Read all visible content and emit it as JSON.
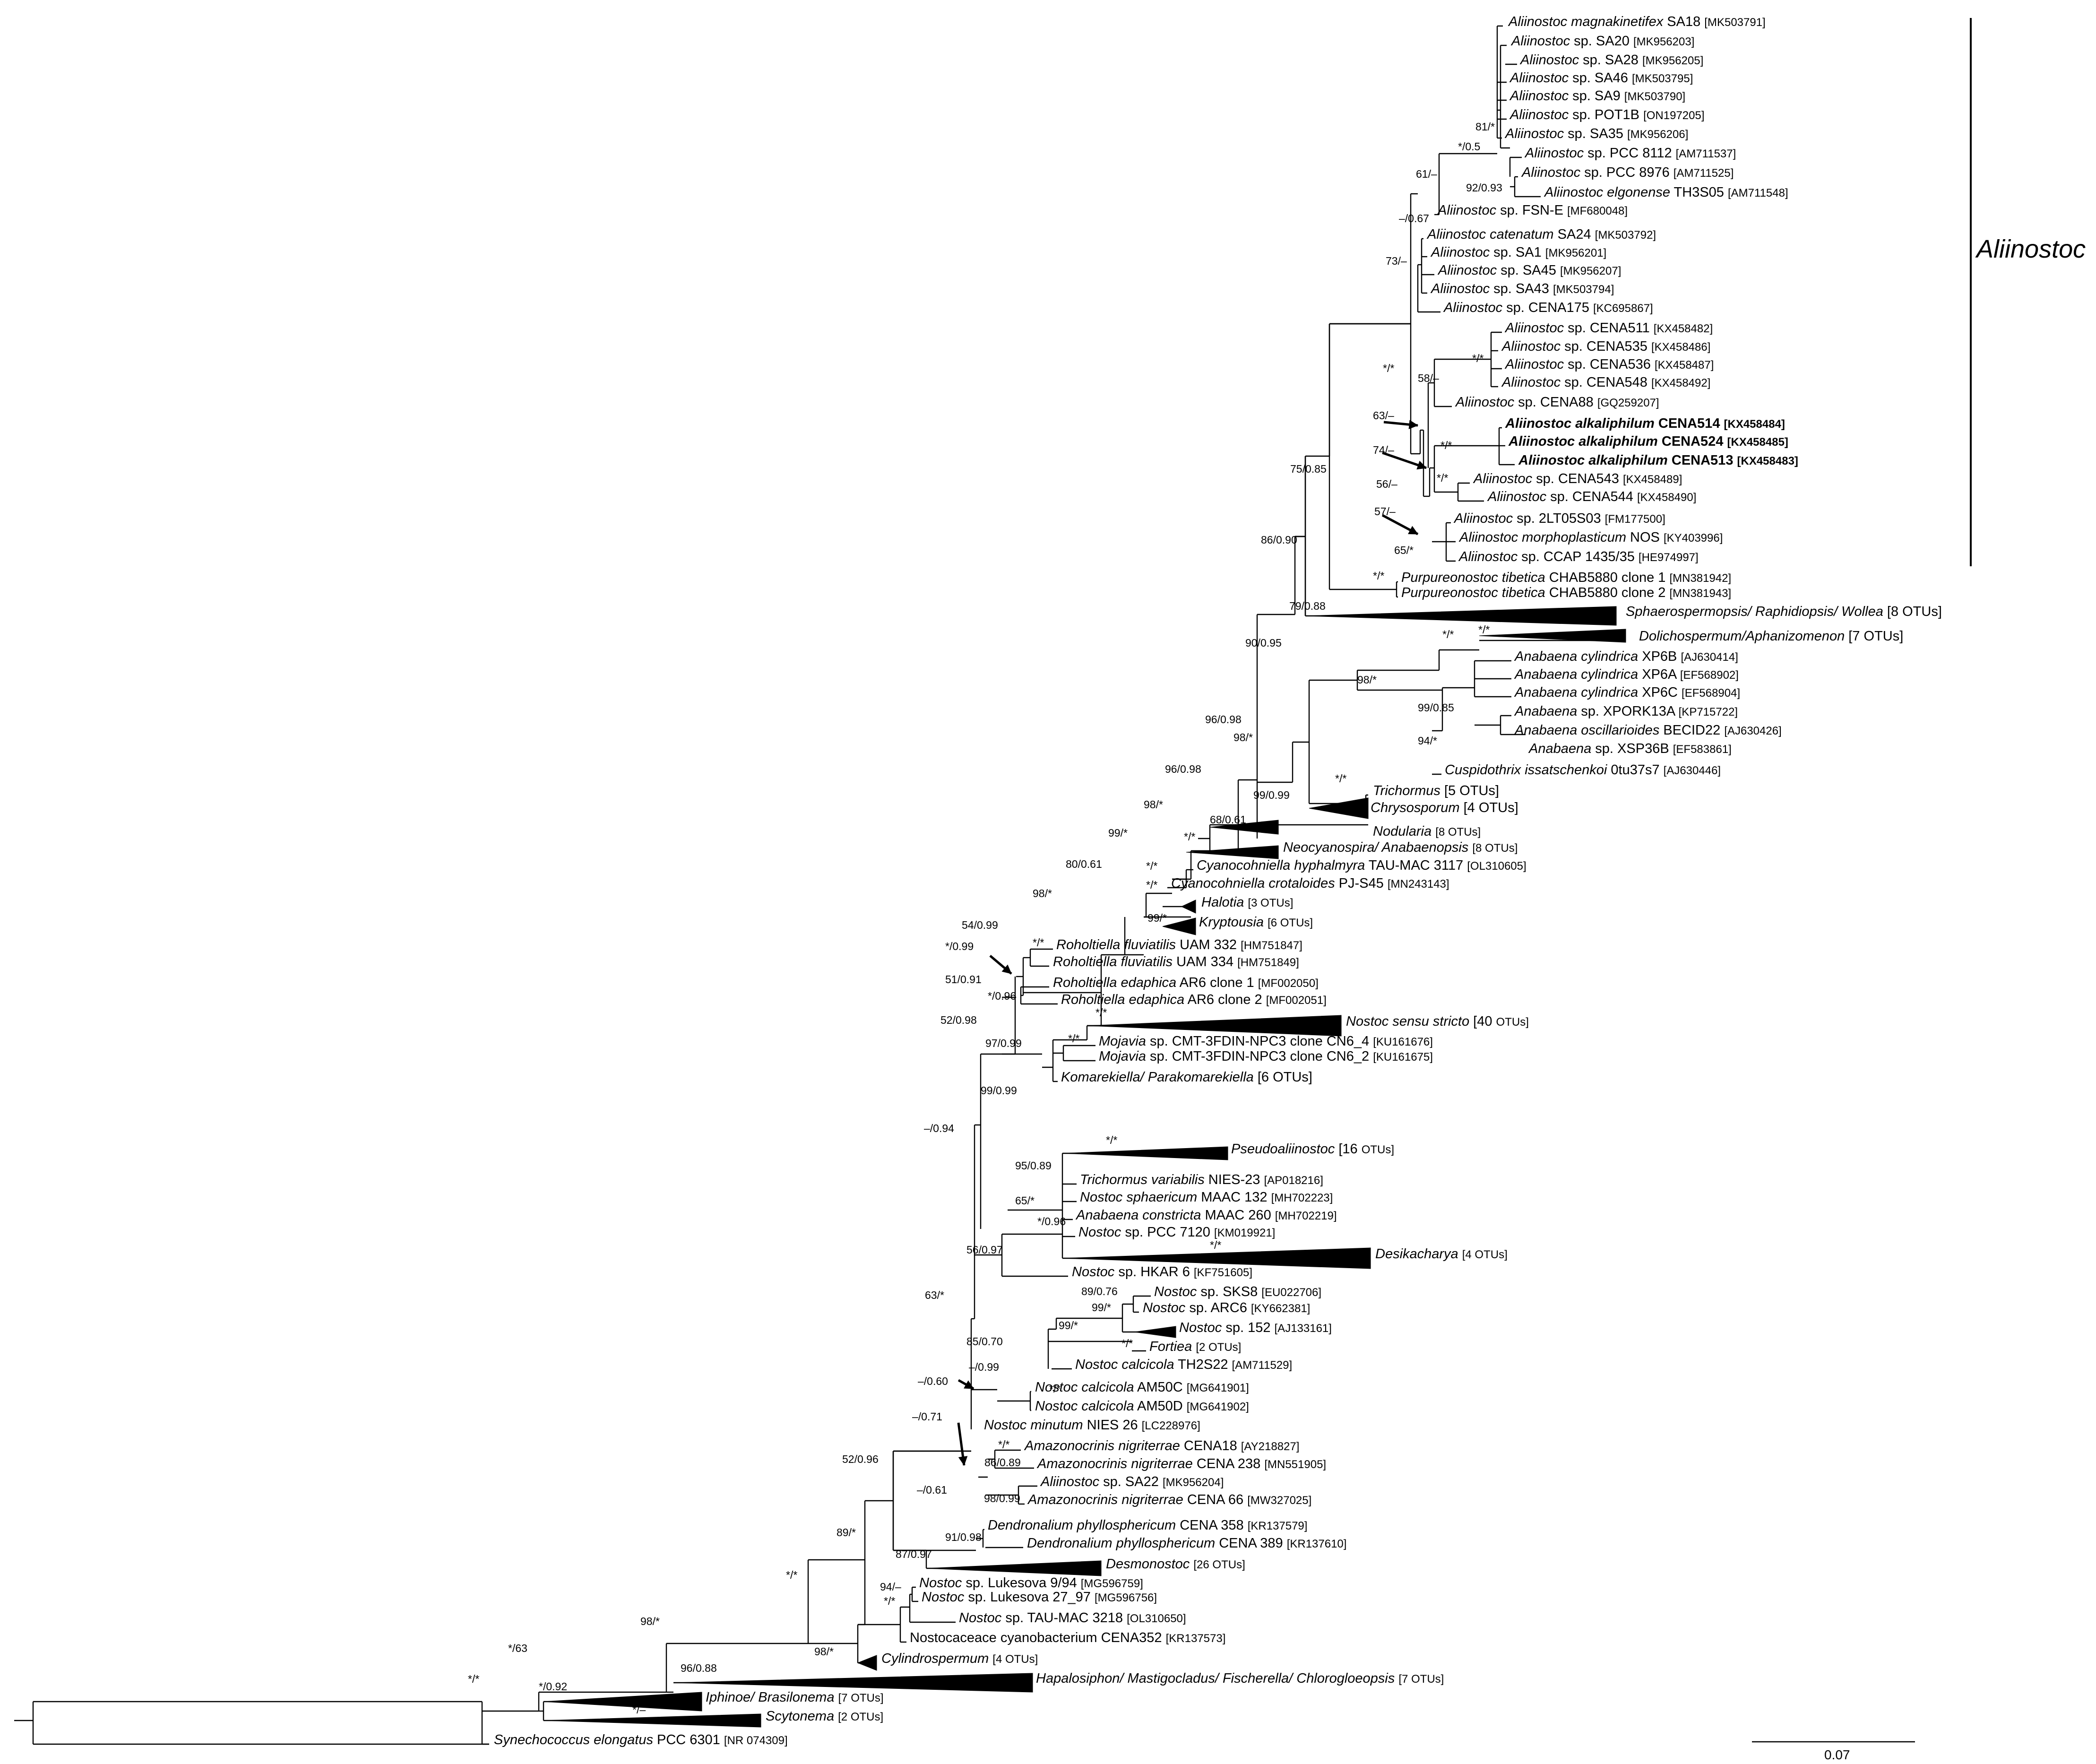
{
  "taxa": [
    {
      "pre": "",
      "italic": "Aliinostoc magnakinetifex",
      "plain": " SA18 ",
      "acc": "[MK503791]",
      "bold": false
    },
    {
      "pre": "",
      "italic": "Aliinostoc",
      "plain": " sp. SA20 ",
      "acc": "[MK956203]",
      "bold": false
    },
    {
      "pre": "",
      "italic": "Aliinostoc",
      "plain": " sp. SA28 ",
      "acc": "[MK956205]",
      "bold": false
    },
    {
      "pre": "",
      "italic": "Aliinostoc",
      "plain": " sp. SA46 ",
      "acc": "[MK503795]",
      "bold": false
    },
    {
      "pre": "",
      "italic": "Aliinostoc",
      "plain": " sp. SA9 ",
      "acc": "[MK503790]",
      "bold": false
    },
    {
      "pre": "",
      "italic": "Aliinostoc",
      "plain": " sp. POT1B ",
      "acc": "[ON197205]",
      "bold": false
    },
    {
      "pre": "",
      "italic": "Aliinostoc",
      "plain": " sp. SA35 ",
      "acc": "[MK956206]",
      "bold": false
    },
    {
      "pre": "",
      "italic": "Aliinostoc",
      "plain": " sp. PCC 8112 ",
      "acc": "[AM711537]",
      "bold": false
    },
    {
      "pre": "",
      "italic": "Aliinostoc",
      "plain": " sp. PCC 8976 ",
      "acc": "[AM711525]",
      "bold": false
    },
    {
      "pre": "",
      "italic": "Aliinostoc elgonense",
      "plain": " TH3S05 ",
      "acc": "[AM711548]",
      "bold": false
    },
    {
      "pre": "",
      "italic": "Aliinostoc",
      "plain": " sp. FSN-E ",
      "acc": "[MF680048]",
      "bold": false
    },
    {
      "pre": "",
      "italic": "Aliinostoc catenatum",
      "plain": " SA24 ",
      "acc": "[MK503792]",
      "bold": false
    },
    {
      "pre": "",
      "italic": "Aliinostoc",
      "plain": " sp. SA1 ",
      "acc": "[MK956201]",
      "bold": false
    },
    {
      "pre": "",
      "italic": "Aliinostoc",
      "plain": " sp. SA45 ",
      "acc": "[MK956207]",
      "bold": false
    },
    {
      "pre": "",
      "italic": "Aliinostoc",
      "plain": " sp. SA43 ",
      "acc": "[MK503794]",
      "bold": false
    },
    {
      "pre": "",
      "italic": "Aliinostoc",
      "plain": " sp. CENA175 ",
      "acc": "[KC695867]",
      "bold": false
    },
    {
      "pre": "",
      "italic": "Aliinostoc",
      "plain": " sp. CENA511 ",
      "acc": "[KX458482]",
      "bold": false
    },
    {
      "pre": "",
      "italic": "Aliinostoc",
      "plain": " sp. CENA535 ",
      "acc": "[KX458486]",
      "bold": false
    },
    {
      "pre": "",
      "italic": "Aliinostoc",
      "plain": " sp. CENA536 ",
      "acc": "[KX458487]",
      "bold": false
    },
    {
      "pre": "",
      "italic": "Aliinostoc",
      "plain": " sp. CENA548 ",
      "acc": "[KX458492]",
      "bold": false
    },
    {
      "pre": "",
      "italic": "Aliinostoc",
      "plain": " sp. CENA88 ",
      "acc": "[GQ259207]",
      "bold": false
    },
    {
      "pre": "",
      "italic": "Aliinostoc alkaliphilum",
      "plain": " CENA514 ",
      "acc": "[KX458484]",
      "bold": true
    },
    {
      "pre": "",
      "italic": "Aliinostoc alkaliphilum",
      "plain": " CENA524 ",
      "acc": "[KX458485]",
      "bold": true
    },
    {
      "pre": "",
      "italic": "Aliinostoc alkaliphilum",
      "plain": " CENA513 ",
      "acc": "[KX458483]",
      "bold": true
    },
    {
      "pre": "",
      "italic": "Aliinostoc",
      "plain": " sp. CENA543 ",
      "acc": "[KX458489]",
      "bold": false
    },
    {
      "pre": "",
      "italic": "Aliinostoc",
      "plain": " sp. CENA544 ",
      "acc": "[KX458490]",
      "bold": false
    },
    {
      "pre": "",
      "italic": "Aliinostoc",
      "plain": " sp. 2LT05S03 ",
      "acc": "[FM177500]",
      "bold": false
    },
    {
      "pre": "",
      "italic": "Aliinostoc morphoplasticum",
      "plain": " NOS ",
      "acc": "[KY403996]",
      "bold": false
    },
    {
      "pre": "",
      "italic": "Aliinostoc",
      "plain": " sp. CCAP 1435/35 ",
      "acc": "[HE974997]",
      "bold": false
    },
    {
      "pre": "",
      "italic": "Purpureonostoc tibetica",
      "plain": " CHAB5880 clone 1 ",
      "acc": "[MN381942]",
      "bold": false
    },
    {
      "pre": "",
      "italic": "Purpureonostoc tibetica",
      "plain": " CHAB5880 clone 2 ",
      "acc": "[MN381943]",
      "bold": false
    },
    {
      "pre": "",
      "italic": "Sphaerospermopsis/ Raphidiopsis/ Wollea",
      "plain": " [8 OTUs]",
      "acc": "",
      "bold": false
    },
    {
      "pre": "",
      "italic": "Dolichospermum/Aphanizomenon",
      "plain": " [7 OTUs]",
      "acc": "",
      "bold": false
    },
    {
      "pre": "",
      "italic": "Anabaena cylindrica",
      "plain": "  XP6B ",
      "acc": "[AJ630414]",
      "bold": false
    },
    {
      "pre": "",
      "italic": "Anabaena cylindrica",
      "plain": "  XP6A ",
      "acc": "[EF568902]",
      "bold": false
    },
    {
      "pre": "",
      "italic": "Anabaena cylindrica",
      "plain": "  XP6C ",
      "acc": "[EF568904]",
      "bold": false
    },
    {
      "pre": "",
      "italic": "Anabaena",
      "plain": " sp.  XPORK13A ",
      "acc": "[KP715722]",
      "bold": false
    },
    {
      "pre": "",
      "italic": "Anabaena oscillarioides",
      "plain": "  BECID22 ",
      "acc": "[AJ630426]",
      "bold": false
    },
    {
      "pre": "",
      "italic": "Anabaena",
      "plain": " sp. XSP36B ",
      "acc": "[EF583861]",
      "bold": false
    },
    {
      "pre": "",
      "italic": "Cuspidothrix issatschenkoi",
      "plain": " 0tu37s7 ",
      "acc": "[AJ630446]",
      "bold": false
    },
    {
      "pre": "",
      "italic": "Trichormus",
      "plain": " [5 OTUs]",
      "acc": "",
      "bold": false
    },
    {
      "pre": "",
      "italic": "Chrysosporum",
      "plain": " [4 OTUs]",
      "acc": "",
      "bold": false
    },
    {
      "pre": "",
      "italic": "Nodularia",
      "plain": " ",
      "acc": "[8 OTUs]",
      "bold": false
    },
    {
      "pre": "",
      "italic": "Neocyanospira/ Anabaenopsis",
      "plain": " ",
      "acc": "[8 OTUs]",
      "bold": false
    },
    {
      "pre": "",
      "italic": "Cyanocohniella hyphalmyra",
      "plain": " TAU-MAC 3117 ",
      "acc": "[OL310605]",
      "bold": false
    },
    {
      "pre": "",
      "italic": "Cyanocohniella crotaloides",
      "plain": " PJ-S45 ",
      "acc": "[MN243143]",
      "bold": false
    },
    {
      "pre": "",
      "italic": "Halotia",
      "plain": " ",
      "acc": "[3 OTUs]",
      "bold": false
    },
    {
      "pre": "",
      "italic": "Kryptousia",
      "plain": " ",
      "acc": "[6 OTUs]",
      "bold": false
    },
    {
      "pre": "",
      "italic": "Roholtiella fluviatilis",
      "plain": "  UAM 332 ",
      "acc": "[HM751847]",
      "bold": false
    },
    {
      "pre": "",
      "italic": "Roholtiella fluviatilis",
      "plain": "  UAM 334 ",
      "acc": "[HM751849]",
      "bold": false
    },
    {
      "pre": "",
      "italic": "Roholtiella edaphica",
      "plain": "  AR6 clone 1 ",
      "acc": "[MF002050]",
      "bold": false
    },
    {
      "pre": "",
      "italic": "Roholtiella edaphica",
      "plain": "  AR6 clone 2 ",
      "acc": "[MF002051]",
      "bold": false
    },
    {
      "pre": "",
      "italic": "Nostoc sensu stricto",
      "plain": " [40 ",
      "acc": "OTUs]",
      "bold": false
    },
    {
      "pre": "",
      "italic": "Mojavia",
      "plain": " sp. CMT-3FDIN-NPC3 clone CN6_4 ",
      "acc": "[KU161676]",
      "bold": false
    },
    {
      "pre": "",
      "italic": "Mojavia",
      "plain": " sp. CMT-3FDIN-NPC3 clone CN6_2 ",
      "acc": "[KU161675]",
      "bold": false
    },
    {
      "pre": "",
      "italic": "Komarekiella/ Parakomarekiella",
      "plain": " [6 OTUs]",
      "acc": "",
      "bold": false
    },
    {
      "pre": "",
      "italic": "Pseudoaliinostoc",
      "plain": " [16 ",
      "acc": "OTUs]",
      "bold": false
    },
    {
      "pre": "",
      "italic": "Trichormus variabilis",
      "plain": " NIES-23 ",
      "acc": "[AP018216]",
      "bold": false
    },
    {
      "pre": "",
      "italic": "Nostoc sphaericum",
      "plain": " MAAC 132 ",
      "acc": "[MH702223]",
      "bold": false
    },
    {
      "pre": "",
      "italic": "Anabaena constricta",
      "plain": " MAAC 260 ",
      "acc": "[MH702219]",
      "bold": false
    },
    {
      "pre": "",
      "italic": "Nostoc",
      "plain": " sp. PCC 7120 ",
      "acc": "[KM019921]",
      "bold": false
    },
    {
      "pre": "",
      "italic": "Desikacharya",
      "plain": " ",
      "acc": "[4 OTUs]",
      "bold": false
    },
    {
      "pre": "",
      "italic": "Nostoc",
      "plain": " sp. HKAR 6 ",
      "acc": "[KF751605]",
      "bold": false
    },
    {
      "pre": "",
      "italic": "Nostoc",
      "plain": " sp. SKS8 ",
      "acc": "[EU022706]",
      "bold": false
    },
    {
      "pre": "",
      "italic": "Nostoc",
      "plain": " sp. ARC6 ",
      "acc": "[KY662381]",
      "bold": false
    },
    {
      "pre": "",
      "italic": "Nostoc",
      "plain": " sp. 152 ",
      "acc": "[AJ133161]",
      "bold": false
    },
    {
      "pre": "",
      "italic": "Fortiea",
      "plain": " ",
      "acc": "[2 OTUs]",
      "bold": false
    },
    {
      "pre": "",
      "italic": "Nostoc calcicola",
      "plain": " TH2S22 ",
      "acc": "[AM711529]",
      "bold": false
    },
    {
      "pre": "",
      "italic": "Nostoc calcicola",
      "plain": " AM50C ",
      "acc": "[MG641901]",
      "bold": false
    },
    {
      "pre": "",
      "italic": "Nostoc calcicola",
      "plain": " AM50D ",
      "acc": "[MG641902]",
      "bold": false
    },
    {
      "pre": "",
      "italic": "Nostoc minutum",
      "plain": " NIES 26 ",
      "acc": "[LC228976]",
      "bold": false
    },
    {
      "pre": "",
      "italic": "Amazonocrinis nigriterrae",
      "plain": " CENA18 ",
      "acc": "[AY218827]",
      "bold": false
    },
    {
      "pre": "",
      "italic": "Amazonocrinis nigriterrae",
      "plain": " CENA 238 ",
      "acc": "[MN551905]",
      "bold": false
    },
    {
      "pre": "",
      "italic": "Aliinostoc",
      "plain": " sp. SA22 ",
      "acc": "[MK956204]",
      "bold": false
    },
    {
      "pre": "",
      "italic": "Amazonocrinis nigriterrae",
      "plain": " CENA 66 ",
      "acc": "[MW327025]",
      "bold": false
    },
    {
      "pre": "",
      "italic": "Dendronalium phyllosphericum",
      "plain": " CENA 358 ",
      "acc": "[KR137579]",
      "bold": false
    },
    {
      "pre": "",
      "italic": "Dendronalium phyllosphericum",
      "plain": " CENA 389 ",
      "acc": "[KR137610]",
      "bold": false
    },
    {
      "pre": "",
      "italic": "Desmonostoc",
      "plain": " ",
      "acc": "[26 OTUs]",
      "bold": false
    },
    {
      "pre": "",
      "italic": "Nostoc",
      "plain": " sp. Lukesova 9/94 ",
      "acc": "[MG596759]",
      "bold": false
    },
    {
      "pre": "",
      "italic": "Nostoc",
      "plain": " sp. Lukesova 27_97 ",
      "acc": "[MG596756]",
      "bold": false
    },
    {
      "pre": "",
      "italic": "Nostoc",
      "plain": " sp. TAU-MAC 3218 ",
      "acc": "[OL310650]",
      "bold": false
    },
    {
      "pre": "Nostocaceace cyanobacterium",
      "italic": "",
      "plain": " CENA352 ",
      "acc": "[KR137573]",
      "bold": false
    },
    {
      "pre": "",
      "italic": "Cylindrospermum",
      "plain": " ",
      "acc": "[4 OTUs]",
      "bold": false
    },
    {
      "pre": "",
      "italic": "Hapalosiphon/ Mastigocladus/ Fischerella/ Chlorogloeopsis",
      "plain": " ",
      "acc": "[7 OTUs]",
      "bold": false
    },
    {
      "pre": "",
      "italic": "Iphinoe/ Brasilonema",
      "plain": " ",
      "acc": "[7 OTUs]",
      "bold": false
    },
    {
      "pre": "",
      "italic": "Scytonema",
      "plain": " ",
      "acc": "[2 OTUs]",
      "bold": false
    },
    {
      "pre": "",
      "italic": "Synechococcus elongatus",
      "plain": " PCC 6301 ",
      "acc": "[NR 074309]",
      "bold": false
    }
  ],
  "supports": [
    "81/*",
    "*/0.5",
    "92/0.93",
    "61/–",
    "–/0.67",
    "73/–",
    "*/*",
    "58/–",
    "*/*",
    "63/–",
    "74/–",
    "*/*",
    "56/–",
    "*/*",
    "57/–",
    "65/*",
    "75/0.85",
    "86/0.90",
    "*/*",
    "79/0.88",
    "90/0.95",
    "*/*",
    "*/*",
    "98/*",
    "99/0.85",
    "94/*",
    "96/0.98",
    "98/*",
    "*/*",
    "96/0.98",
    "99/0.99",
    "68/0.61",
    "98/*",
    "*/*",
    "99/*",
    "80/0.61",
    "*/*",
    "*/*",
    "98/*",
    "99/*",
    "54/0.99",
    "*/0.99",
    "*/*",
    "51/0.91",
    "*/0.96",
    "*/*",
    "52/0.98",
    "97/0.99",
    "*/*",
    "99/0.99",
    "–/0.94",
    "*/*",
    "95/0.89",
    "65/*",
    "*/0.96",
    "*/*",
    "56/0.97",
    "63/*",
    "89/0.76",
    "99/*",
    "99/*",
    "*/*",
    "85/0.70",
    "–/0.99",
    "–/0.60",
    "*/*",
    "–/0.71",
    "*/*",
    "86/0.89",
    "–/0.61",
    "98/0.99",
    "91/0.98",
    "87/0.97",
    "52/0.96",
    "89/*",
    "94/–",
    "*/*",
    "*/*",
    "98/*",
    "98/*",
    "96/0.88",
    "*/63",
    "*/*",
    "*/0.92",
    "*/–"
  ],
  "clade_label": "Aliinostoc",
  "scale": "0.07"
}
